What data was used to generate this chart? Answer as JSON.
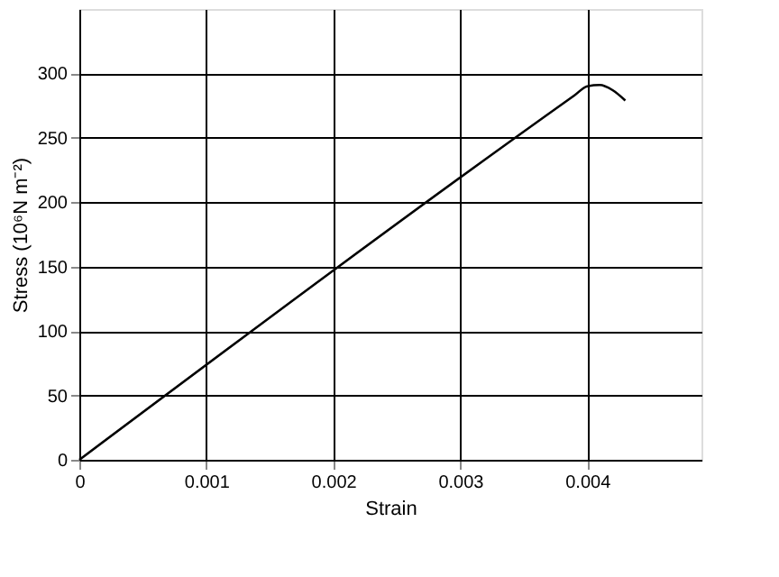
{
  "chart_data": {
    "type": "line",
    "xlabel": "Strain",
    "ylabel": "Stress (10⁶N m⁻²)",
    "x": [
      0,
      0.0039,
      0.004,
      0.0041,
      0.0042,
      0.0043
    ],
    "series": [
      {
        "color": "#000000",
        "values": [
          0,
          283,
          290,
          291,
          287,
          279
        ]
      }
    ],
    "xlim": [
      0,
      0.0049
    ],
    "xticks": [
      0,
      0.001,
      0.002,
      0.003,
      0.004
    ],
    "ylim": [
      0,
      350
    ],
    "yticks": [
      0,
      50,
      100,
      150,
      200,
      250,
      300
    ],
    "grid": true,
    "marker": "none",
    "line_style": "solid"
  }
}
